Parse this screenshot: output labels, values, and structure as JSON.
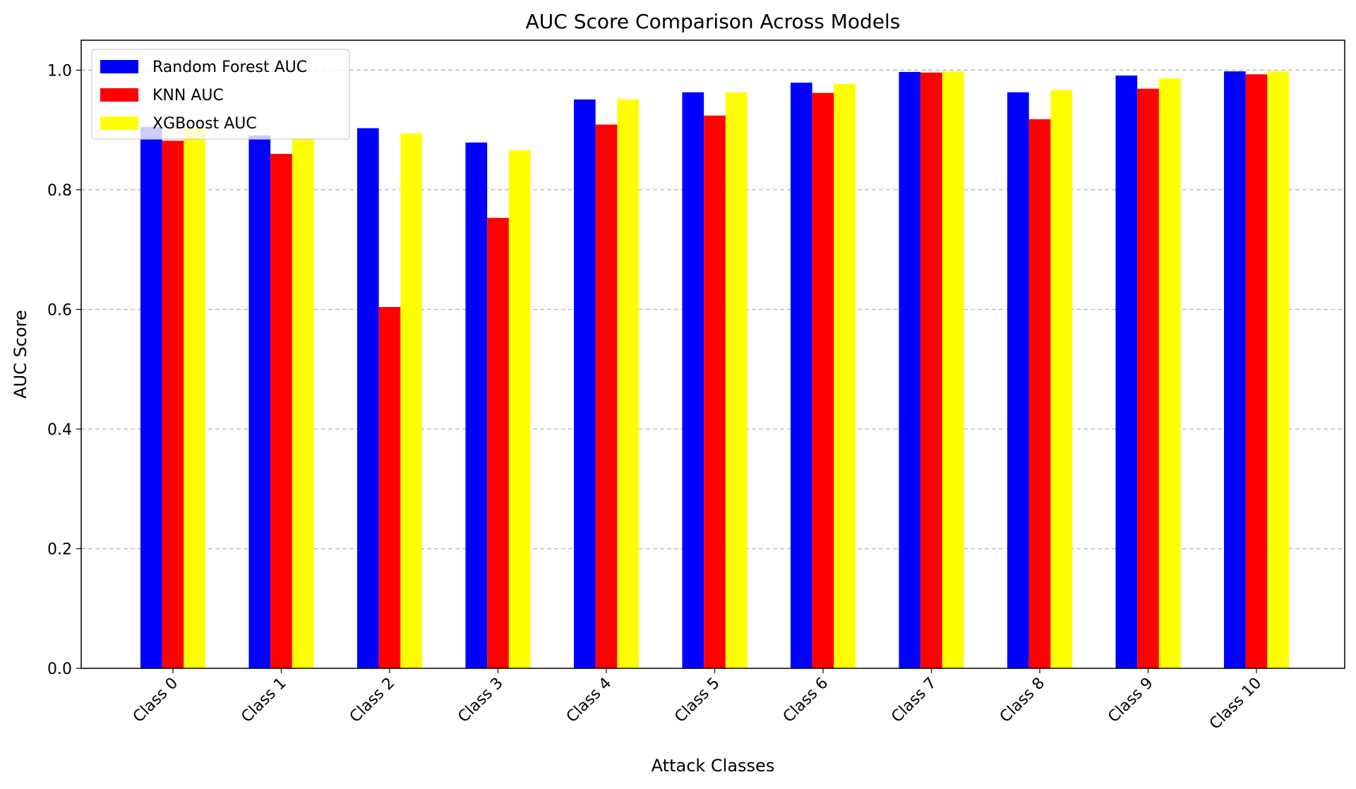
{
  "chart_data": {
    "type": "bar",
    "title": "AUC Score Comparison Across Models",
    "xlabel": "Attack Classes",
    "ylabel": "AUC Score",
    "categories": [
      "Class 0",
      "Class 1",
      "Class 2",
      "Class 3",
      "Class 4",
      "Class 5",
      "Class 6",
      "Class 7",
      "Class 8",
      "Class 9",
      "Class 10"
    ],
    "series": [
      {
        "name": "Random Forest AUC",
        "color": "#0000ff",
        "values": [
          0.905,
          0.891,
          0.903,
          0.879,
          0.951,
          0.963,
          0.979,
          0.997,
          0.963,
          0.991,
          0.998
        ]
      },
      {
        "name": "KNN AUC",
        "color": "#ff0000",
        "values": [
          0.882,
          0.86,
          0.604,
          0.753,
          0.909,
          0.924,
          0.962,
          0.996,
          0.918,
          0.969,
          0.993
        ]
      },
      {
        "name": "XGBoost AUC",
        "color": "#ffff00",
        "values": [
          0.905,
          0.885,
          0.894,
          0.866,
          0.951,
          0.963,
          0.977,
          0.998,
          0.967,
          0.986,
          0.998
        ]
      }
    ],
    "ylim": [
      0,
      1.05
    ],
    "yticks": [
      0.0,
      0.2,
      0.4,
      0.6,
      0.8,
      1.0
    ],
    "ytick_labels": [
      "0.0",
      "0.2",
      "0.4",
      "0.6",
      "0.8",
      "1.0"
    ],
    "grid": "horizontal dashed",
    "legend_position": "top-left"
  }
}
